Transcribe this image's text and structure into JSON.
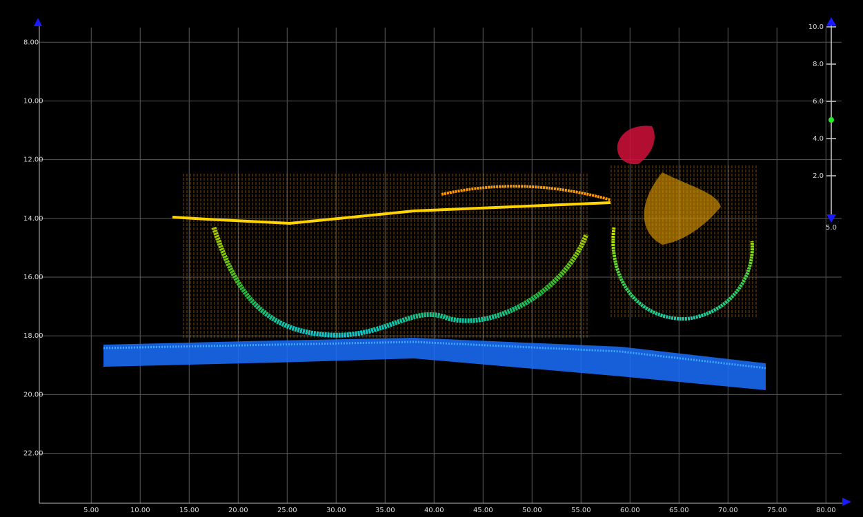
{
  "plot": {
    "xlim": [
      -0.3,
      81.6
    ],
    "ylim": [
      7.5,
      23.7
    ],
    "xticks": [
      {
        "value": 5,
        "label": "5.00"
      },
      {
        "value": 10,
        "label": "10.00"
      },
      {
        "value": 15,
        "label": "15.00"
      },
      {
        "value": 20,
        "label": "20.00"
      },
      {
        "value": 25,
        "label": "25.00"
      },
      {
        "value": 30,
        "label": "30.00"
      },
      {
        "value": 35,
        "label": "35.00"
      },
      {
        "value": 40,
        "label": "40.00"
      },
      {
        "value": 45,
        "label": "45.00"
      },
      {
        "value": 50,
        "label": "50.00"
      },
      {
        "value": 55,
        "label": "55.00"
      },
      {
        "value": 60,
        "label": "60.00"
      },
      {
        "value": 65,
        "label": "65.00"
      },
      {
        "value": 70,
        "label": "70.00"
      },
      {
        "value": 75,
        "label": "75.00"
      },
      {
        "value": 80,
        "label": "80.00"
      }
    ],
    "yticks": [
      {
        "value": 8,
        "label": "8.00"
      },
      {
        "value": 10,
        "label": "10.00"
      },
      {
        "value": 12,
        "label": "12.00"
      },
      {
        "value": 14,
        "label": "14.00"
      },
      {
        "value": 16,
        "label": "16.00"
      },
      {
        "value": 18,
        "label": "18.00"
      },
      {
        "value": 20,
        "label": "20.00"
      },
      {
        "value": 22,
        "label": "22.00"
      }
    ]
  },
  "scale_slider": {
    "range": [
      0,
      10
    ],
    "ticks": [
      {
        "value": 10,
        "label": "10.0"
      },
      {
        "value": 8,
        "label": "8.0"
      },
      {
        "value": 6,
        "label": "6.0"
      },
      {
        "value": 4,
        "label": "4.0"
      },
      {
        "value": 2,
        "label": "2.0"
      }
    ],
    "value": {
      "value": 5,
      "label": "5.0"
    }
  }
}
